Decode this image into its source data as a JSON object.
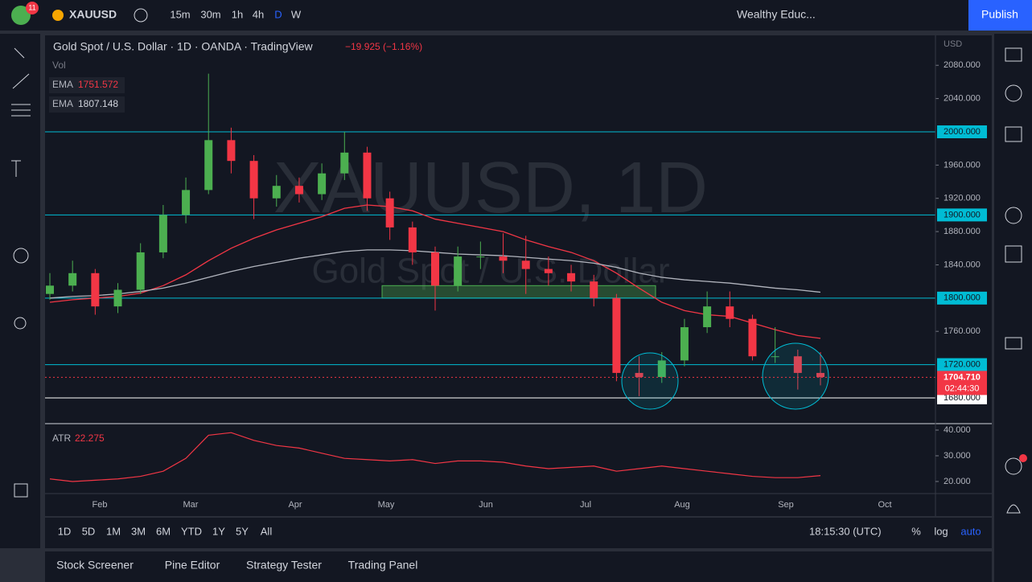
{
  "toolbar": {
    "badge": "11",
    "symbol": "XAUUSD",
    "intervals": [
      "15m",
      "30m",
      "1h",
      "4h",
      "D",
      "W"
    ],
    "layout": "Wealthy Educ...",
    "publish": "Publish"
  },
  "chart_data": {
    "type": "candlestick",
    "title": "Gold Spot / U.S. Dollar · 1D · OANDA · TradingView",
    "change": "−19.925 (−1.16%)",
    "volume_label": "Vol",
    "watermark": "XAUUSD, 1D",
    "watermark_sub": "Gold Spot / U.S. Dollar",
    "currency": "USD",
    "ylim": [
      1649,
      2116
    ],
    "yticks": [
      {
        "value": 2080,
        "label": "2080.000"
      },
      {
        "value": 2040,
        "label": "2040.000"
      },
      {
        "value": 1960,
        "label": "1960.000"
      },
      {
        "value": 1920,
        "label": "1920.000"
      },
      {
        "value": 1880,
        "label": "1880.000"
      },
      {
        "value": 1840,
        "label": "1840.000"
      },
      {
        "value": 1760,
        "label": "1760.000"
      }
    ],
    "levels": [
      {
        "value": 2000,
        "label": "2000.000",
        "color": "#00bcd4"
      },
      {
        "value": 1900,
        "label": "1900.000",
        "color": "#00bcd4"
      },
      {
        "value": 1800,
        "label": "1800.000",
        "color": "#00bcd4"
      },
      {
        "value": 1720,
        "label": "1720.000",
        "color": "#00bcd4"
      },
      {
        "value": 1680,
        "label": "1680.000",
        "color": "#ffffff"
      }
    ],
    "zone": [
      1800,
      1815
    ],
    "last_price": {
      "value": 1704.71,
      "label": "1704.710"
    },
    "countdown": "02:44:30",
    "up_color": "#4caf50",
    "down_color": "#f23645",
    "candles": [
      [
        1805,
        1830,
        1798,
        1815
      ],
      [
        1815,
        1845,
        1808,
        1830
      ],
      [
        1830,
        1835,
        1780,
        1790
      ],
      [
        1790,
        1818,
        1782,
        1810
      ],
      [
        1810,
        1866,
        1805,
        1855
      ],
      [
        1855,
        1912,
        1848,
        1900
      ],
      [
        1900,
        1945,
        1890,
        1930
      ],
      [
        1930,
        2070,
        1925,
        1990
      ],
      [
        1990,
        2005,
        1950,
        1965
      ],
      [
        1965,
        1972,
        1895,
        1920
      ],
      [
        1920,
        1948,
        1910,
        1935
      ],
      [
        1935,
        1945,
        1915,
        1925
      ],
      [
        1925,
        1962,
        1918,
        1950
      ],
      [
        1950,
        2000,
        1942,
        1975
      ],
      [
        1975,
        1982,
        1905,
        1920
      ],
      [
        1920,
        1928,
        1870,
        1885
      ],
      [
        1885,
        1892,
        1840,
        1855
      ],
      [
        1855,
        1862,
        1785,
        1815
      ],
      [
        1815,
        1862,
        1808,
        1850
      ],
      [
        1850,
        1868,
        1835,
        1850
      ],
      [
        1850,
        1878,
        1830,
        1845
      ],
      [
        1845,
        1875,
        1805,
        1835
      ],
      [
        1835,
        1850,
        1815,
        1830
      ],
      [
        1830,
        1840,
        1808,
        1820
      ],
      [
        1820,
        1828,
        1790,
        1800
      ],
      [
        1800,
        1805,
        1700,
        1710
      ],
      [
        1710,
        1730,
        1682,
        1705
      ],
      [
        1705,
        1735,
        1698,
        1725
      ],
      [
        1725,
        1775,
        1718,
        1765
      ],
      [
        1765,
        1808,
        1758,
        1790
      ],
      [
        1790,
        1808,
        1765,
        1775
      ],
      [
        1775,
        1780,
        1725,
        1730
      ],
      [
        1730,
        1765,
        1722,
        1730
      ],
      [
        1730,
        1738,
        1690,
        1710
      ],
      [
        1710,
        1735,
        1695,
        1705
      ]
    ],
    "ema": [
      {
        "name": "EMA",
        "value": 1751.572,
        "color": "#f23645",
        "values": [
          1795,
          1798,
          1800,
          1802,
          1806,
          1815,
          1828,
          1845,
          1860,
          1872,
          1882,
          1890,
          1898,
          1908,
          1912,
          1910,
          1905,
          1895,
          1890,
          1885,
          1880,
          1870,
          1862,
          1855,
          1845,
          1830,
          1812,
          1795,
          1785,
          1780,
          1778,
          1770,
          1762,
          1755,
          1751.6
        ]
      },
      {
        "name": "EMA",
        "value": 1807.148,
        "color": "#b2b5be",
        "values": [
          1800,
          1802,
          1803,
          1805,
          1808,
          1812,
          1818,
          1825,
          1832,
          1838,
          1843,
          1848,
          1852,
          1856,
          1858,
          1858,
          1857,
          1855,
          1853,
          1852,
          1851,
          1849,
          1847,
          1845,
          1842,
          1837,
          1830,
          1825,
          1822,
          1820,
          1818,
          1815,
          1812,
          1810,
          1807.1
        ]
      }
    ],
    "atr": {
      "name": "ATR",
      "value": 22.275,
      "color": "#f23645",
      "ylim": [
        15.3,
        42.5
      ],
      "yticks": [
        {
          "value": 40,
          "label": "40.000"
        },
        {
          "value": 30,
          "label": "30.000"
        },
        {
          "value": 20,
          "label": "20.000"
        }
      ],
      "values": [
        21,
        20,
        20.5,
        21,
        22,
        24,
        29,
        38,
        39,
        36,
        34,
        33,
        31,
        29,
        28.5,
        28,
        28.5,
        27,
        28,
        28,
        27.5,
        26,
        25,
        25.5,
        26,
        24,
        25,
        26,
        25,
        24,
        23,
        22,
        21.5,
        21.5,
        22.3
      ]
    },
    "months": [
      "Feb",
      "Mar",
      "Apr",
      "May",
      "Jun",
      "Jul",
      "Aug",
      "Sep",
      "Oct"
    ]
  },
  "bottom_bar": {
    "ranges": [
      "1D",
      "5D",
      "1M",
      "3M",
      "6M",
      "YTD",
      "1Y",
      "5Y",
      "All"
    ],
    "clock": "18:15:30 (UTC)",
    "percent": "%",
    "log": "log",
    "auto": "auto"
  },
  "tabs": [
    "Stock Screener",
    "Pine Editor",
    "Strategy Tester",
    "Trading Panel"
  ]
}
